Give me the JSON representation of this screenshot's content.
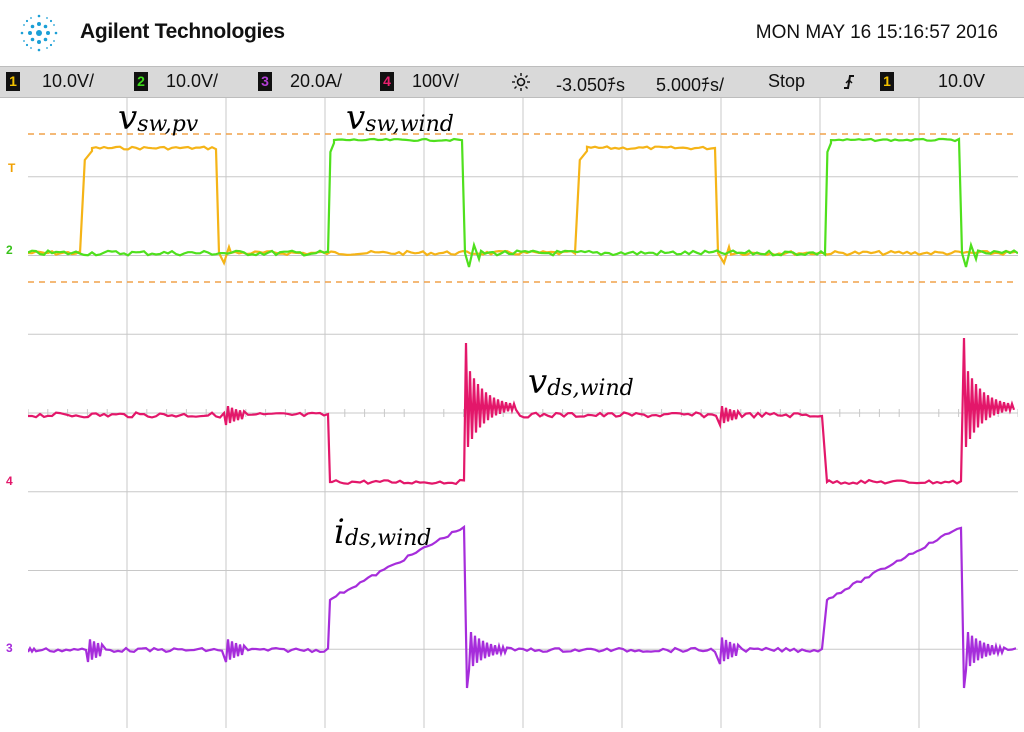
{
  "header": {
    "brand": "Agilent Technologies",
    "datetime": "MON MAY 16 15:16:57 2016",
    "logo_icon": "agilent-spark-icon"
  },
  "statusbar": {
    "ch1": {
      "num": "1",
      "scale": "10.0V/",
      "color": "#f2c200"
    },
    "ch2": {
      "num": "2",
      "scale": "10.0V/",
      "color": "#3ddc1a"
    },
    "ch3": {
      "num": "3",
      "scale": "20.0A/",
      "color": "#b23fd6"
    },
    "ch4": {
      "num": "4",
      "scale": "100V/",
      "color": "#e8206e"
    },
    "timebase_icon": "sun-icon",
    "delay": "-3.050ﾁs",
    "timebase": "5.000ﾁs/",
    "run_state": "Stop",
    "trigger_icon": "trigger-edge-icon",
    "trigger_ch": "1",
    "trigger_level": "10.0V"
  },
  "annotations": {
    "vsw_pv": {
      "main": "v",
      "sub": "sw,pv"
    },
    "vsw_wind": {
      "main": "v",
      "sub": "sw,wind"
    },
    "vds_wind": {
      "main": "v",
      "sub": "ds,wind"
    },
    "ids_wind": {
      "main": "i",
      "sub": "ds,wind"
    }
  },
  "markers": {
    "trigger": "T",
    "ch2": "2",
    "ch4": "4",
    "ch3": "3"
  },
  "colors": {
    "ch1": "#f5b417",
    "ch2": "#4fe01d",
    "ch3": "#a62ddb",
    "ch4": "#e3176a",
    "cursor": "#f0a24a",
    "grid": "#c8c8c8"
  }
}
